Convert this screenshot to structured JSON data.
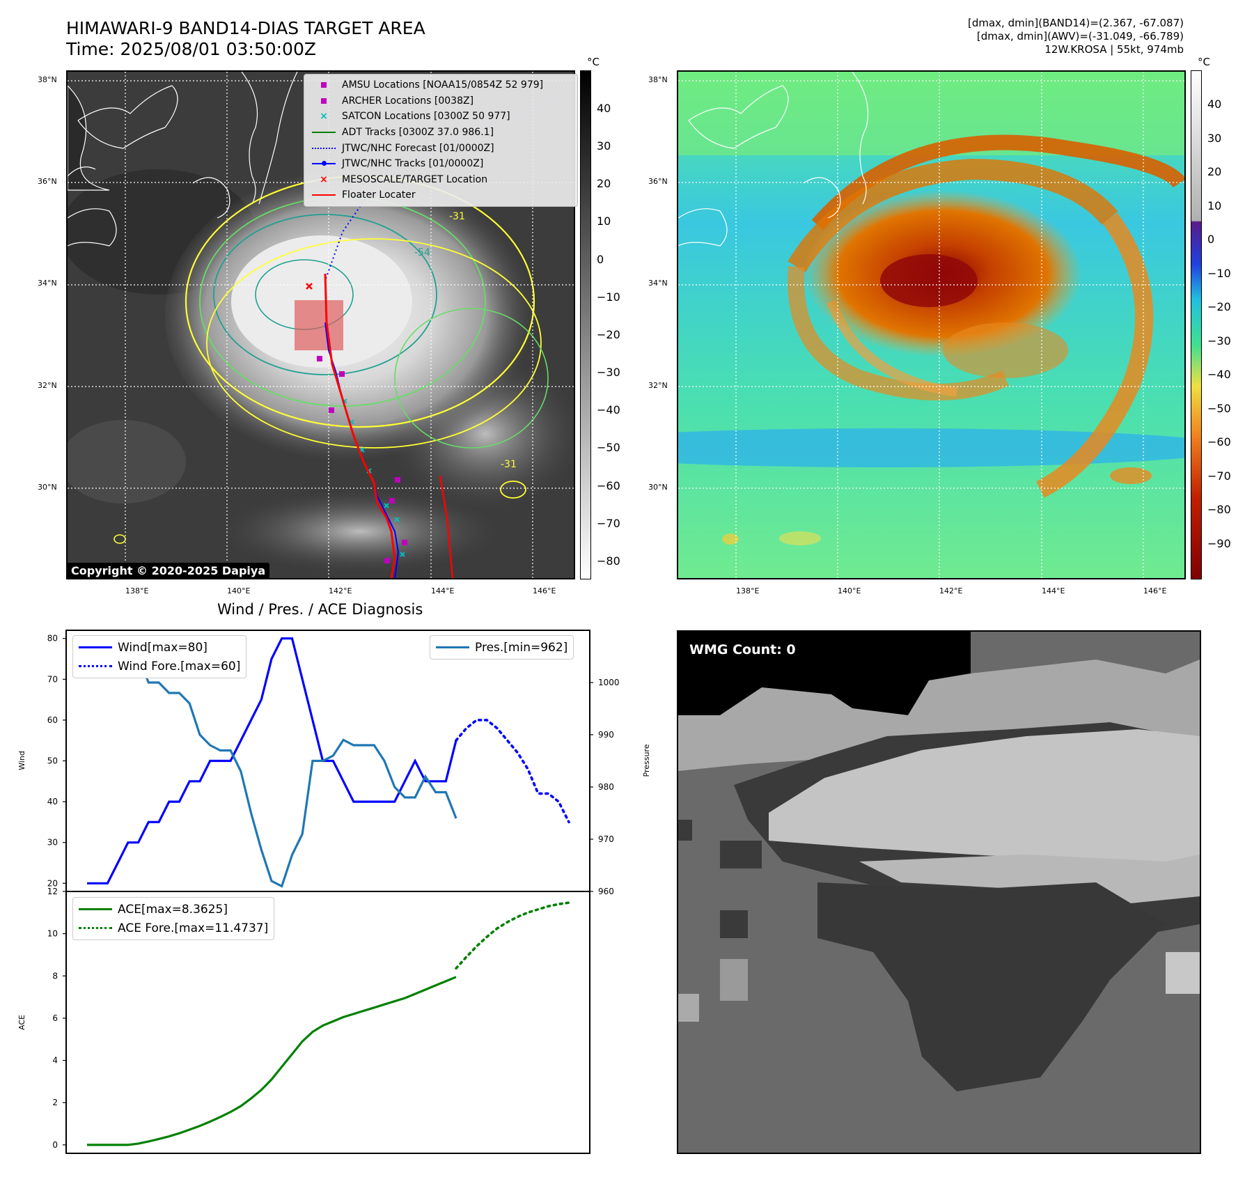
{
  "header": {
    "title_line1": "HIMAWARI-9 BAND14-DIAS TARGET AREA",
    "title_line2": "Time: 2025/08/01 03:50:00Z",
    "info_line1": "[dmax, dmin](BAND14)=(2.367, -67.087)",
    "info_line2": "[dmax, dmin](AWV)=(-31.049, -66.789)",
    "info_line3": "12W.KROSA | 55kt, 974mb"
  },
  "map": {
    "lat_ticks": [
      "38°N",
      "36°N",
      "34°N",
      "32°N",
      "30°N"
    ],
    "lon_ticks": [
      "138°E",
      "140°E",
      "142°E",
      "144°E",
      "146°E"
    ],
    "copyright": "Copyright © 2020-2025 Dapiya",
    "contour_labels": [
      "-31",
      "-54",
      "-31"
    ],
    "colorbar_unit": "°C",
    "band14_colorbar_ticks": [
      "40",
      "30",
      "20",
      "10",
      "0",
      "−10",
      "−20",
      "−30",
      "−40",
      "−50",
      "−60",
      "−70",
      "−80"
    ],
    "awv_colorbar_ticks": [
      "40",
      "30",
      "20",
      "10",
      "0",
      "−10",
      "−20",
      "−30",
      "−40",
      "−50",
      "−60",
      "−70",
      "−80",
      "−90"
    ],
    "legend": [
      {
        "label": "AMSU Locations [NOAA15/0854Z 52 979]",
        "color": "#bf00bf",
        "symbol": "square"
      },
      {
        "label": "ARCHER Locations [0038Z]",
        "color": "#bf00bf",
        "symbol": "square"
      },
      {
        "label": "SATCON Locations [0300Z 50 977]",
        "color": "#00bfbf",
        "symbol": "x"
      },
      {
        "label": "ADT Tracks [0300Z 37.0 986.1]",
        "color": "#008000",
        "symbol": "line"
      },
      {
        "label": "JTWC/NHC Forecast [01/0000Z]",
        "color": "#0000ff",
        "symbol": "dotted"
      },
      {
        "label": "JTWC/NHC Tracks [01/0000Z]",
        "color": "#0000ff",
        "symbol": "line-dot"
      },
      {
        "label": "MESOSCALE/TARGET Location",
        "color": "#ff0000",
        "symbol": "x"
      },
      {
        "label": "Floater Locater",
        "color": "#ff0000",
        "symbol": "line"
      }
    ],
    "colors": {
      "cyan_symbol": "#00bfbf",
      "magenta": "#bf00bf",
      "yellow_contour": "#ffff33",
      "green_contour": "#66dd66",
      "teal_contour": "#20a090"
    }
  },
  "wmg": {
    "label": "WMG Count: 0"
  },
  "chart_data": [
    {
      "type": "line",
      "title": "Wind / Pres. / ACE Diagnosis",
      "ylabel": "Wind",
      "ylabel_right": "Pressure",
      "ylim": [
        18,
        82
      ],
      "ylim_right": [
        960,
        1010
      ],
      "y_ticks": [
        20,
        30,
        40,
        50,
        60,
        70,
        80
      ],
      "y_ticks_right": [
        960,
        970,
        980,
        990,
        1000
      ],
      "series": [
        {
          "name": "Wind[max=80]",
          "color": "#0000ff",
          "style": "solid",
          "x": [
            0,
            1,
            2,
            3,
            4,
            5,
            6,
            7,
            8,
            9,
            10,
            11,
            12,
            13,
            14,
            15,
            16,
            17,
            18,
            19,
            20,
            21,
            22,
            23,
            24,
            25,
            26,
            27,
            28,
            29,
            30,
            31,
            32,
            33,
            34,
            35,
            36,
            37,
            38,
            39,
            40,
            41,
            42
          ],
          "values": [
            20,
            20,
            20,
            25,
            30,
            30,
            35,
            35,
            40,
            40,
            45,
            45,
            50,
            50,
            50,
            55,
            60,
            65,
            75,
            80,
            80,
            70,
            60,
            50,
            50,
            45,
            40,
            40,
            40,
            40,
            40,
            45,
            50,
            45,
            45,
            45,
            55,
            null,
            null,
            null,
            null,
            null,
            null
          ]
        },
        {
          "name": "Wind Fore.[max=60]",
          "color": "#0000ff",
          "style": "dotted",
          "x": [
            36,
            37,
            38,
            39,
            40,
            41,
            42,
            43,
            44,
            45,
            46,
            47
          ],
          "values": [
            55,
            58,
            60,
            60,
            58,
            55,
            52,
            48,
            42,
            42,
            40,
            35
          ]
        },
        {
          "name": "Pres.[min=962]",
          "color": "#1f77b4",
          "style": "solid",
          "axis": "right",
          "x": [
            0,
            1,
            2,
            3,
            4,
            5,
            6,
            7,
            8,
            9,
            10,
            11,
            12,
            13,
            14,
            15,
            16,
            17,
            18,
            19,
            20,
            21,
            22,
            23,
            24,
            25,
            26,
            27,
            28,
            29,
            30,
            31,
            32,
            33,
            34,
            35,
            36
          ],
          "values": [
            1008,
            1008,
            1008,
            1006,
            1005,
            1005,
            1000,
            1000,
            998,
            998,
            996,
            990,
            988,
            987,
            987,
            983,
            975,
            968,
            962,
            961,
            967,
            971,
            985,
            985,
            986,
            989,
            988,
            988,
            988,
            985,
            980,
            978,
            978,
            982,
            979,
            979,
            974
          ]
        }
      ]
    },
    {
      "type": "line",
      "ylabel": "ACE",
      "ylim": [
        -0.4,
        12
      ],
      "y_ticks": [
        0,
        2,
        4,
        6,
        8,
        10,
        12
      ],
      "series": [
        {
          "name": "ACE[max=8.3625]",
          "color": "#008000",
          "style": "solid",
          "x": [
            0,
            1,
            2,
            3,
            4,
            5,
            6,
            7,
            8,
            9,
            10,
            11,
            12,
            13,
            14,
            15,
            16,
            17,
            18,
            19,
            20,
            21,
            22,
            23,
            24,
            25,
            26,
            27,
            28,
            29,
            30,
            31,
            32,
            33,
            34,
            35,
            36
          ],
          "values": [
            0,
            0,
            0,
            0,
            0,
            0.06,
            0.16,
            0.28,
            0.4,
            0.55,
            0.72,
            0.9,
            1.1,
            1.32,
            1.56,
            1.84,
            2.2,
            2.6,
            3.1,
            3.7,
            4.3,
            4.9,
            5.35,
            5.65,
            5.85,
            6.05,
            6.2,
            6.35,
            6.5,
            6.65,
            6.8,
            6.95,
            7.15,
            7.35,
            7.55,
            7.75,
            7.95
          ]
        },
        {
          "name": "ACE Fore.[max=11.4737]",
          "color": "#008000",
          "style": "dotted",
          "x": [
            36,
            37,
            38,
            39,
            40,
            41,
            42,
            43,
            44,
            45,
            46,
            47
          ],
          "values": [
            8.36,
            8.9,
            9.4,
            9.85,
            10.25,
            10.55,
            10.8,
            11.0,
            11.15,
            11.3,
            11.4,
            11.47
          ]
        }
      ]
    }
  ]
}
